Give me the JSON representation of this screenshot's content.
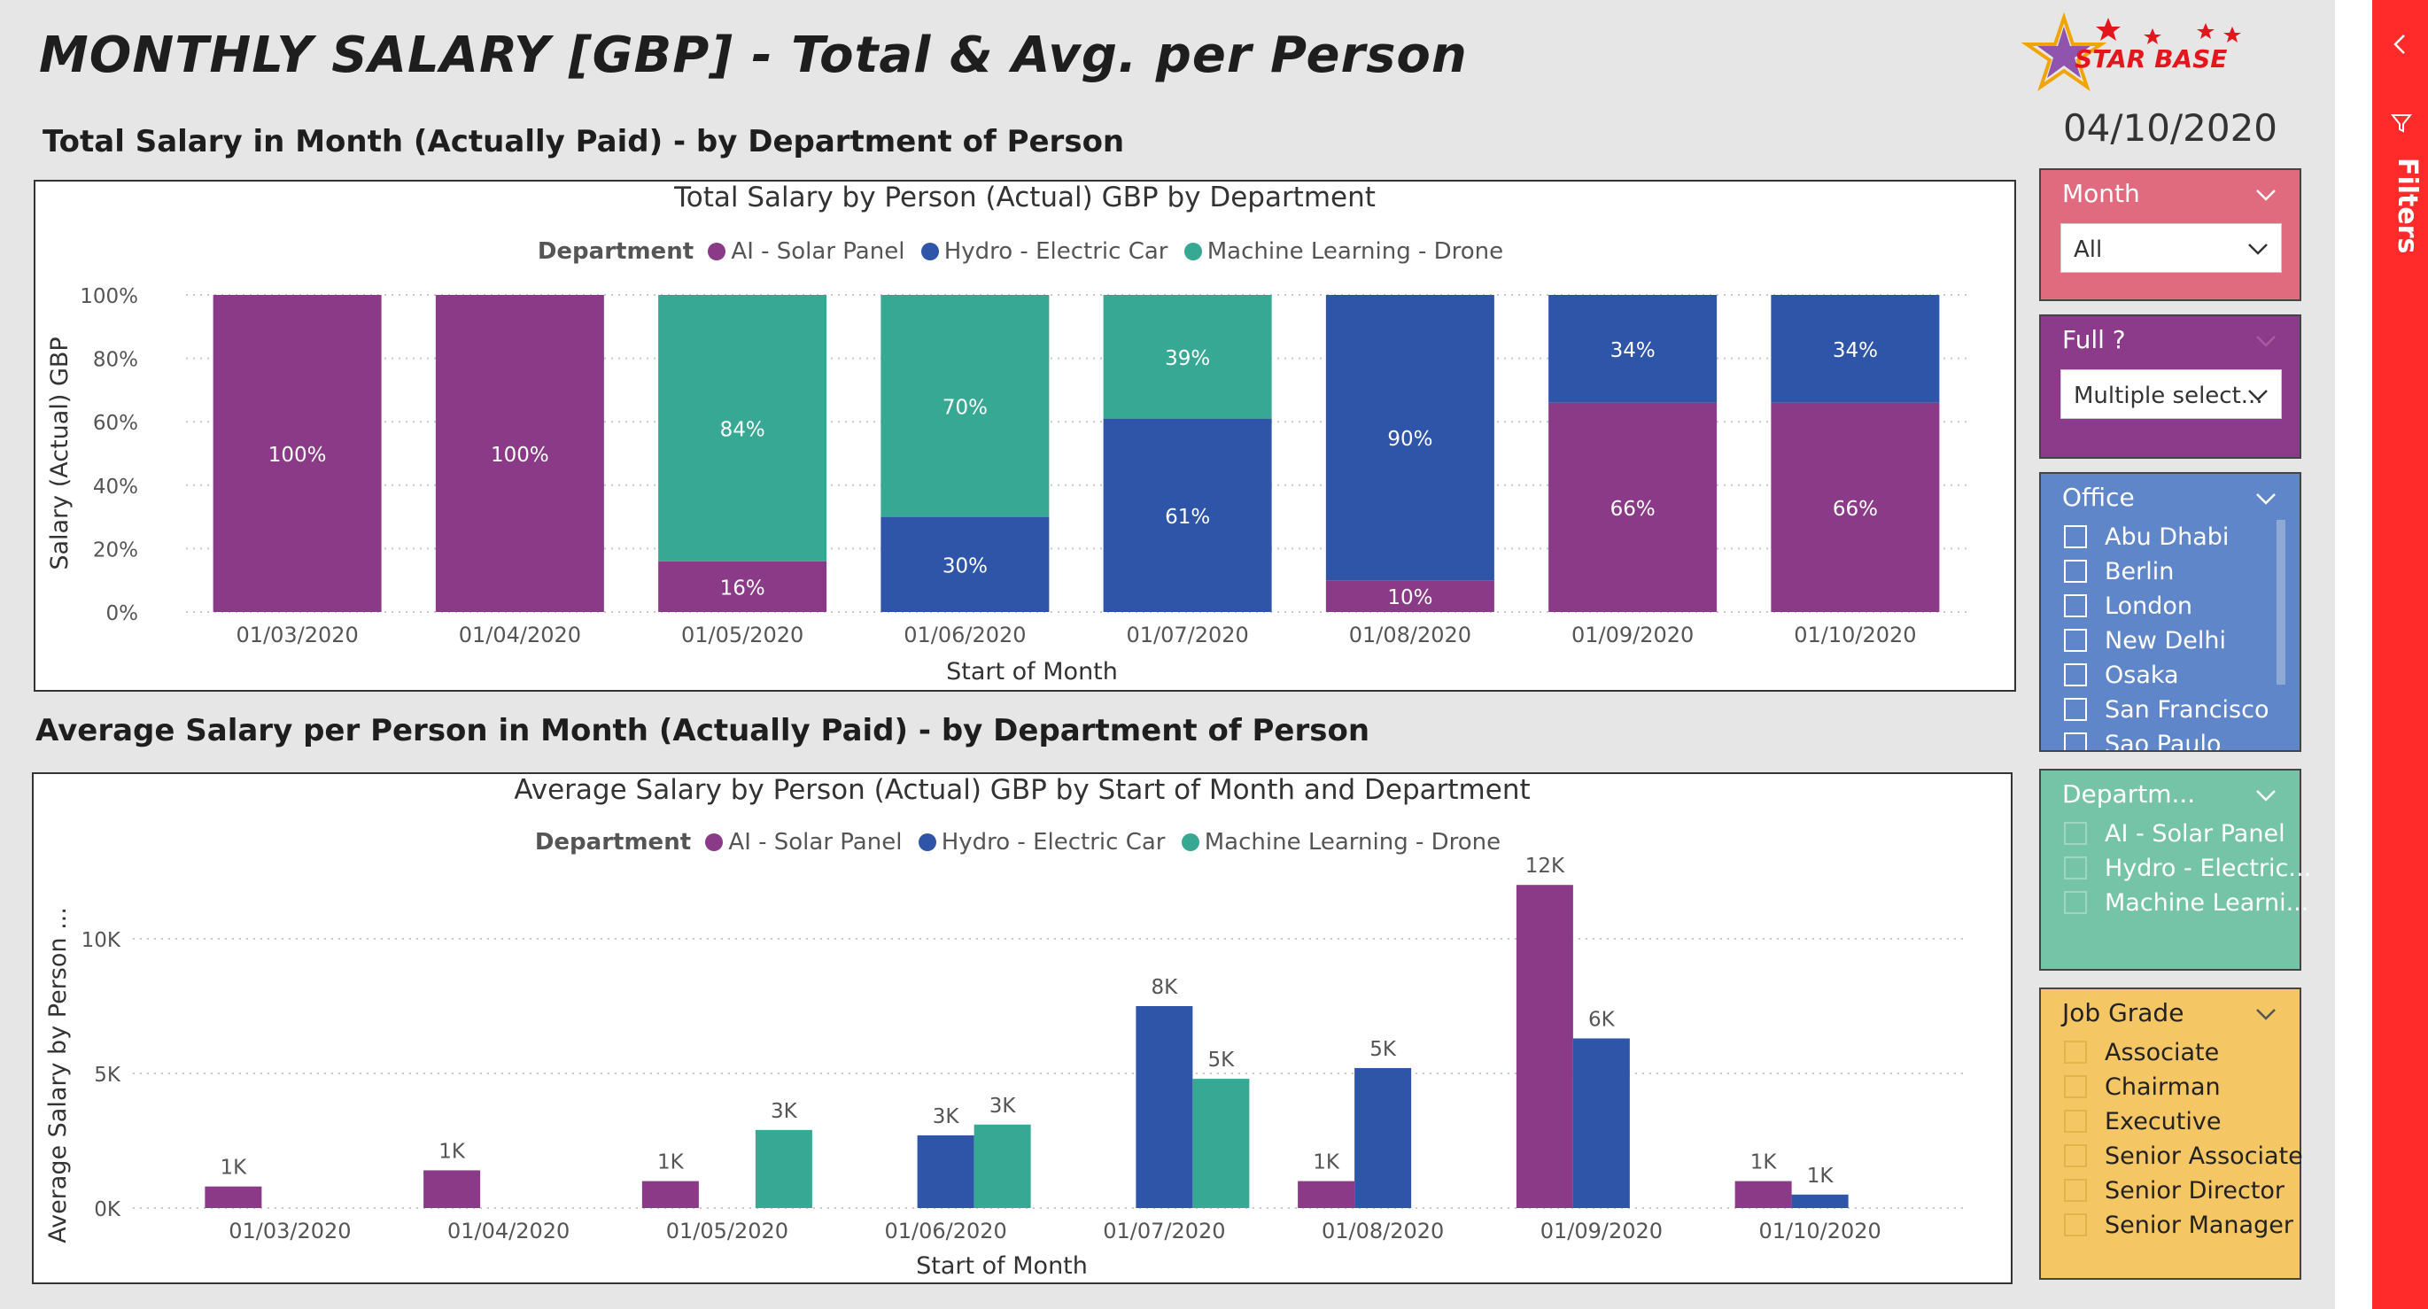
{
  "header": {
    "title": "MONTHLY SALARY [GBP] - Total & Avg. per Person",
    "date": "04/10/2020",
    "logo_text": "STAR BASE"
  },
  "sections": {
    "total_title": "Total Salary in Month (Actually Paid) - by Department of Person",
    "avg_title": "Average Salary per Person in Month (Actually Paid) - by Department of Person"
  },
  "legend": {
    "title": "Department",
    "items": [
      "AI - Solar Panel",
      "Hydro - Electric Car",
      "Machine Learning - Drone"
    ]
  },
  "colors": {
    "ai": "#8a3a87",
    "hydro": "#2e55a8",
    "ml": "#37a893",
    "month_slicer": "#e06b7f",
    "full_slicer": "#8c3a8a",
    "office_slicer": "#5f86c8",
    "dept_slicer": "#76c4a7",
    "grade_slicer": "#f5c664",
    "filters_bar": "#ff2a2a"
  },
  "chart_data": [
    {
      "type": "bar",
      "title": "Total Salary by Person (Actual) GBP by Department",
      "xlabel": "Start of Month",
      "ylabel": "Salary (Actual) GBP",
      "stacked": "100%",
      "ylim": [
        0,
        100
      ],
      "yticks": [
        "0%",
        "20%",
        "40%",
        "60%",
        "80%",
        "100%"
      ],
      "categories": [
        "01/03/2020",
        "01/04/2020",
        "01/05/2020",
        "01/06/2020",
        "01/07/2020",
        "01/08/2020",
        "01/09/2020",
        "01/10/2020"
      ],
      "series": [
        {
          "name": "AI - Solar Panel",
          "values": [
            100,
            100,
            16,
            0,
            0,
            10,
            66,
            66
          ],
          "labels": [
            "100%",
            "100%",
            "16%",
            "",
            "",
            "10%",
            "66%",
            "66%"
          ]
        },
        {
          "name": "Hydro - Electric Car",
          "values": [
            0,
            0,
            0,
            30,
            61,
            90,
            34,
            34
          ],
          "labels": [
            "",
            "",
            "",
            "30%",
            "61%",
            "90%",
            "34%",
            "34%"
          ]
        },
        {
          "name": "Machine Learning - Drone",
          "values": [
            0,
            0,
            84,
            70,
            39,
            0,
            0,
            0
          ],
          "labels": [
            "",
            "",
            "84%",
            "70%",
            "39%",
            "",
            "",
            ""
          ]
        }
      ],
      "grid": true,
      "legend_position": "top"
    },
    {
      "type": "bar",
      "title": "Average Salary by Person (Actual) GBP by Start of Month and Department",
      "xlabel": "Start of Month",
      "ylabel": "Average Salary by Person ...",
      "ylim": [
        0,
        12500
      ],
      "yticks": [
        "0K",
        "5K",
        "10K"
      ],
      "categories": [
        "01/03/2020",
        "01/04/2020",
        "01/05/2020",
        "01/06/2020",
        "01/07/2020",
        "01/08/2020",
        "01/09/2020",
        "01/10/2020"
      ],
      "series": [
        {
          "name": "AI - Solar Panel",
          "values": [
            800,
            1400,
            1000,
            null,
            null,
            1000,
            12000,
            1000
          ],
          "labels": [
            "1K",
            "1K",
            "1K",
            "",
            "",
            "1K",
            "12K",
            "1K"
          ]
        },
        {
          "name": "Hydro - Electric Car",
          "values": [
            null,
            null,
            null,
            2700,
            7500,
            5200,
            6300,
            500
          ],
          "labels": [
            "",
            "",
            "",
            "3K",
            "8K",
            "5K",
            "6K",
            "1K"
          ]
        },
        {
          "name": "Machine Learning - Drone",
          "values": [
            null,
            null,
            2900,
            3100,
            4800,
            null,
            null,
            null
          ],
          "labels": [
            "",
            "",
            "3K",
            "3K",
            "5K",
            "",
            "",
            ""
          ]
        }
      ],
      "grid": true,
      "legend_position": "top"
    }
  ],
  "slicers": {
    "month": {
      "title": "Month",
      "value": "All"
    },
    "full": {
      "title": "Full ?",
      "value": "Multiple select..."
    },
    "office": {
      "title": "Office",
      "items": [
        "Abu Dhabi",
        "Berlin",
        "London",
        "New Delhi",
        "Osaka",
        "San Francisco",
        "Sao Paulo"
      ]
    },
    "department": {
      "title": "Departm...",
      "items": [
        "AI - Solar Panel",
        "Hydro - Electric...",
        "Machine Learni..."
      ]
    },
    "job_grade": {
      "title": "Job Grade",
      "items": [
        "Associate",
        "Chairman",
        "Executive",
        "Senior Associate",
        "Senior Director",
        "Senior Manager"
      ]
    }
  },
  "filters_pane": {
    "label": "Filters"
  }
}
